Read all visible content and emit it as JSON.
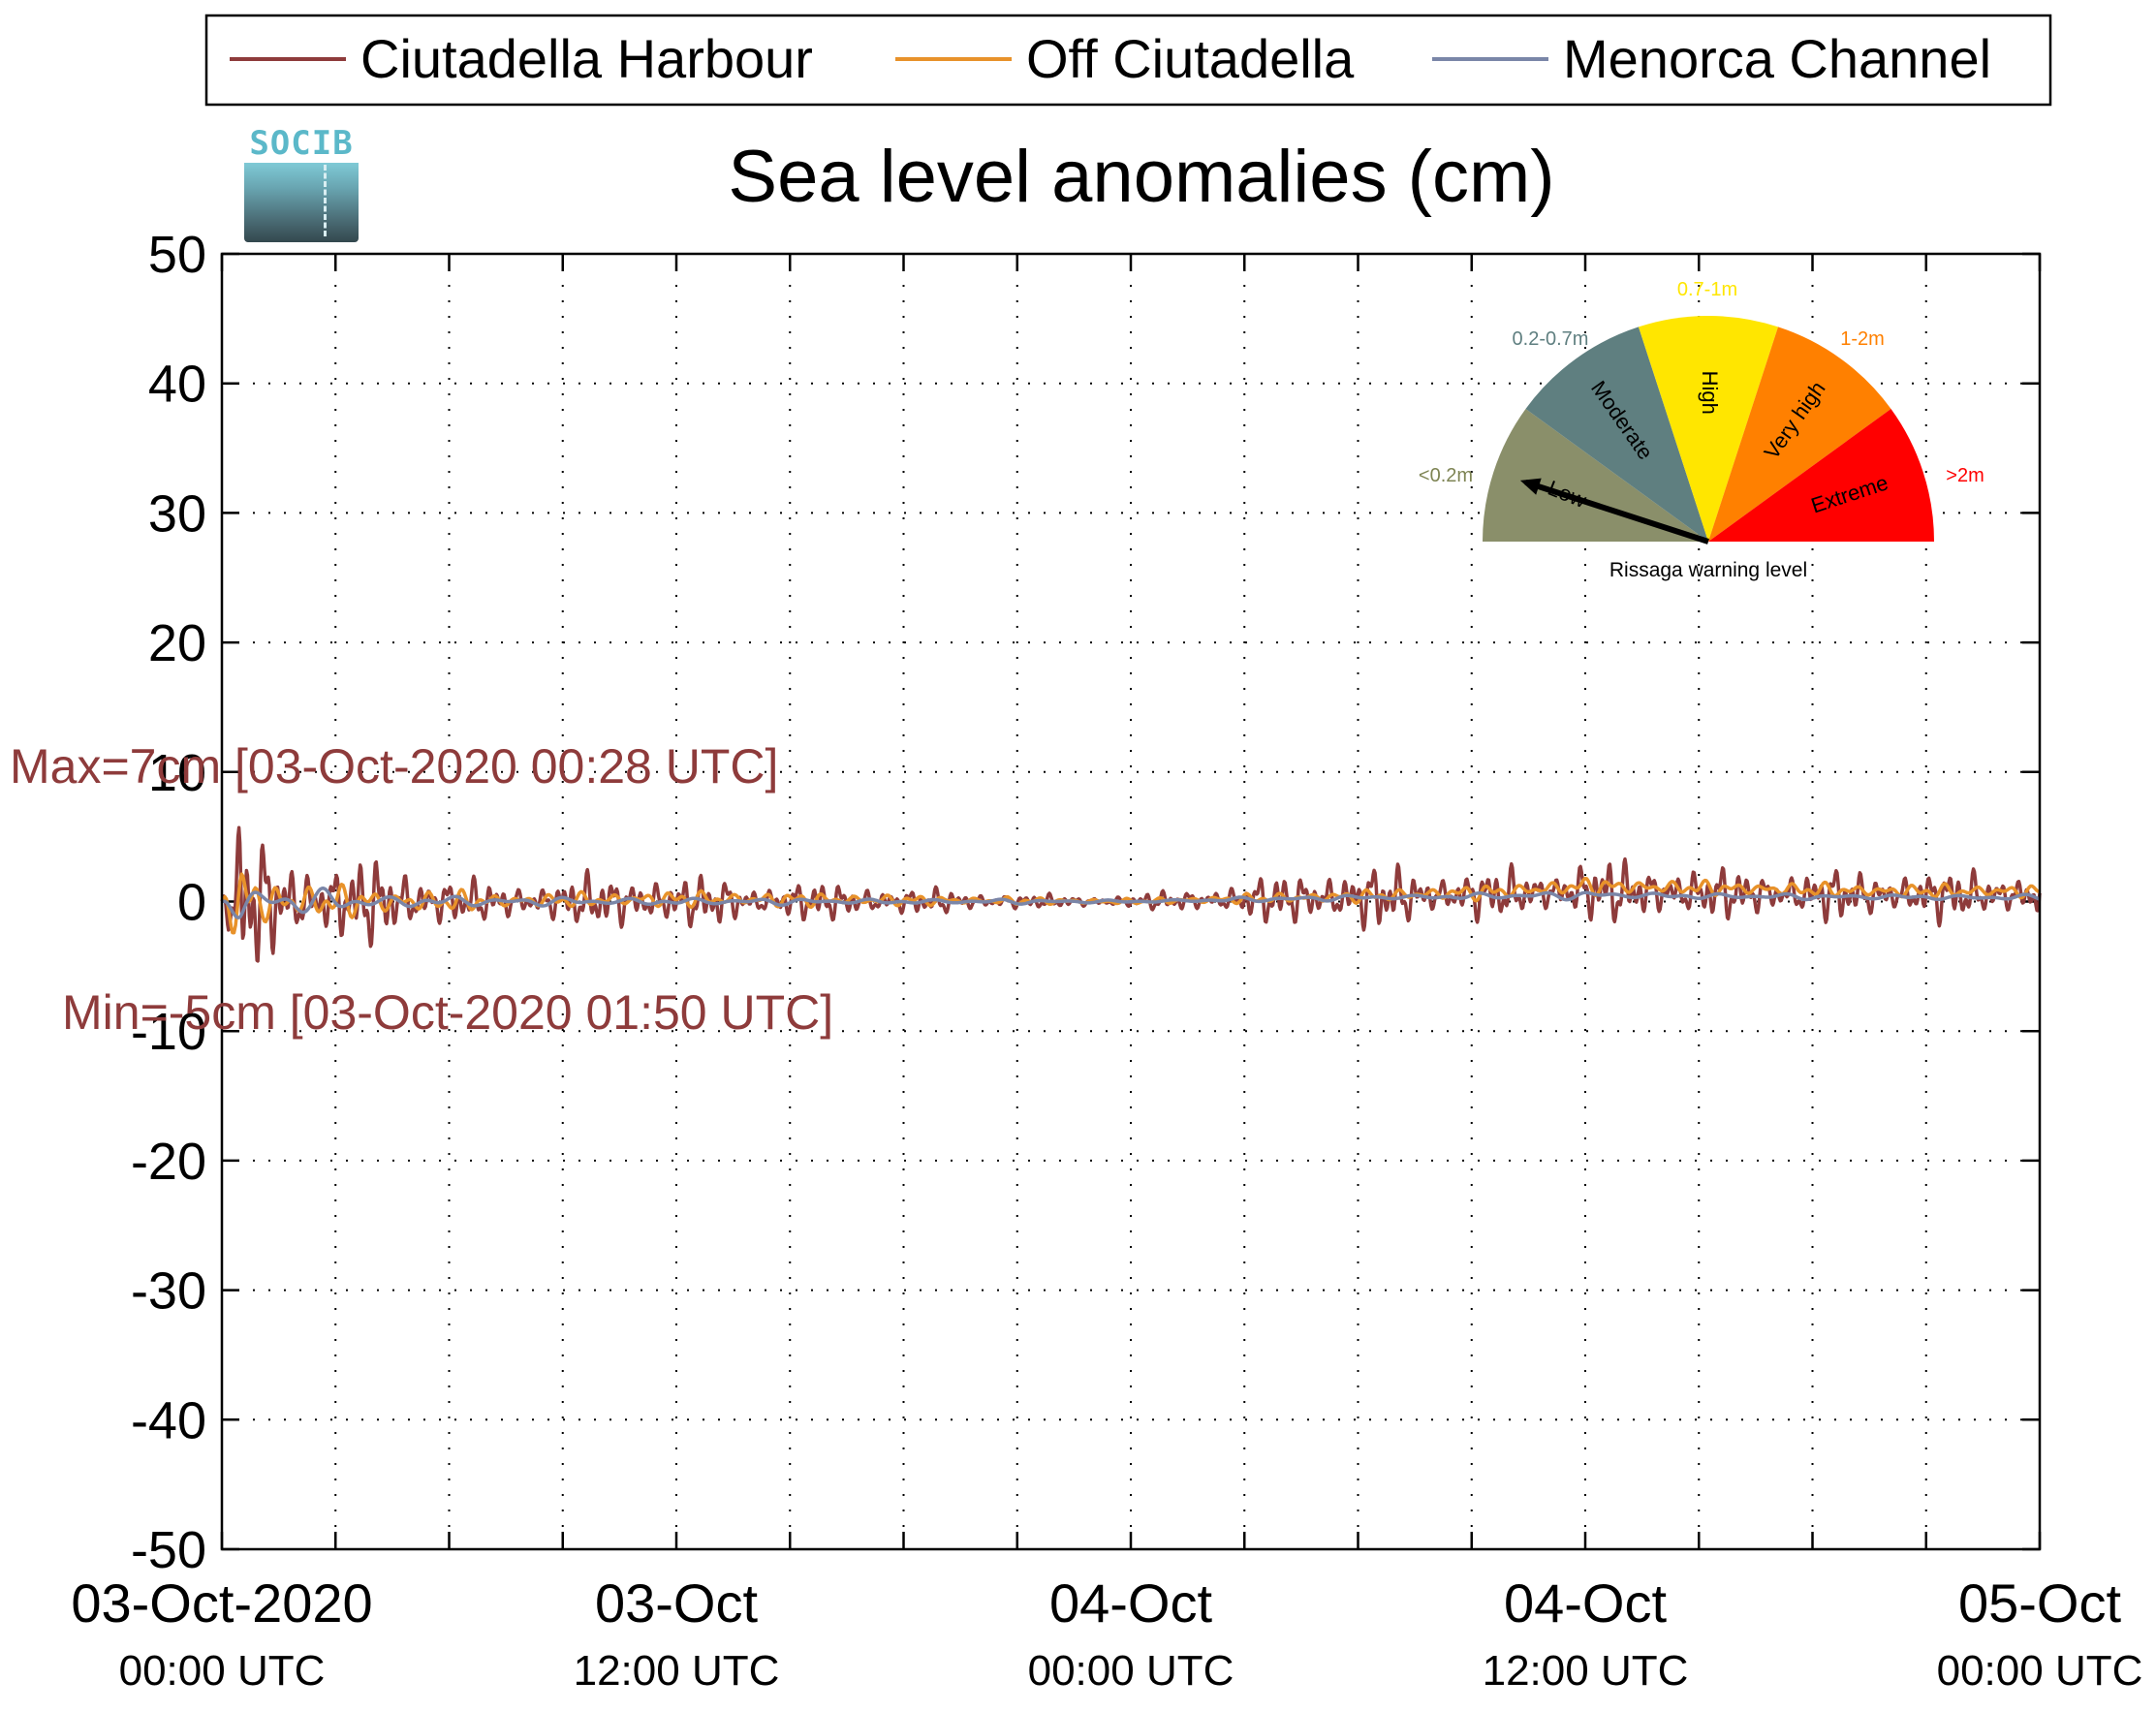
{
  "chart_data": {
    "type": "line",
    "title": "Sea level anomalies (cm)",
    "xlabel": "",
    "ylabel": "",
    "ylim": [
      -50,
      50
    ],
    "yticks": [
      50,
      40,
      30,
      20,
      10,
      0,
      -10,
      -20,
      -30,
      -40,
      -50
    ],
    "y_tick_labels": [
      "50",
      "40",
      "30",
      "20",
      "10",
      "0",
      "-10",
      "-20",
      "-30",
      "-40",
      "-50"
    ],
    "xlim_hours": [
      0,
      48
    ],
    "x_axis_start": "03-Oct-2020 00:00 UTC",
    "x_ticks": [
      {
        "hour": 0,
        "line1": "03-Oct-2020",
        "line2": "00:00 UTC"
      },
      {
        "hour": 12,
        "line1": "03-Oct",
        "line2": "12:00 UTC"
      },
      {
        "hour": 24,
        "line1": "04-Oct",
        "line2": "00:00 UTC"
      },
      {
        "hour": 36,
        "line1": "04-Oct",
        "line2": "12:00 UTC"
      },
      {
        "hour": 48,
        "line1": "05-Oct",
        "line2": "00:00 UTC"
      }
    ],
    "grid": true,
    "legend_position": "top",
    "series": [
      {
        "name": "Ciutadella Harbour",
        "color": "#8e3b3b",
        "envelope": [
          [
            0,
            0
          ],
          [
            0.5,
            7
          ],
          [
            1,
            5
          ],
          [
            2,
            4
          ],
          [
            3,
            3
          ],
          [
            4,
            3.5
          ],
          [
            5,
            3
          ],
          [
            6,
            2
          ],
          [
            7,
            1.5
          ],
          [
            8,
            1.5
          ],
          [
            9,
            2
          ],
          [
            10,
            2
          ],
          [
            11,
            2.5
          ],
          [
            12,
            2
          ],
          [
            13,
            2
          ],
          [
            14,
            1.5
          ],
          [
            15,
            1.5
          ],
          [
            16,
            1.5
          ],
          [
            17,
            1.5
          ],
          [
            18,
            1
          ],
          [
            19,
            1
          ],
          [
            20,
            0.8
          ],
          [
            21,
            0.6
          ],
          [
            22,
            0.5
          ],
          [
            23,
            0.5
          ],
          [
            24,
            0.5
          ],
          [
            25,
            0.8
          ],
          [
            26,
            1
          ],
          [
            27,
            1.5
          ],
          [
            28,
            2
          ],
          [
            29,
            2.5
          ],
          [
            30,
            2.5
          ],
          [
            31,
            2.5
          ],
          [
            32,
            2
          ],
          [
            33,
            2
          ],
          [
            34,
            2
          ],
          [
            35,
            2
          ],
          [
            36,
            2.5
          ],
          [
            37,
            2.5
          ],
          [
            38,
            2.5
          ],
          [
            39,
            2
          ],
          [
            40,
            2
          ],
          [
            41,
            2
          ],
          [
            42,
            2
          ],
          [
            43,
            2
          ],
          [
            44,
            2
          ],
          [
            45,
            2
          ],
          [
            46,
            2
          ],
          [
            47,
            2
          ],
          [
            48,
            2
          ]
        ],
        "baseline": [
          [
            0,
            0
          ],
          [
            6,
            0
          ],
          [
            12,
            0
          ],
          [
            18,
            0
          ],
          [
            24,
            0
          ],
          [
            30,
            0.3
          ],
          [
            34,
            0.6
          ],
          [
            36,
            0.8
          ],
          [
            40,
            0.6
          ],
          [
            44,
            0.5
          ],
          [
            48,
            0.5
          ]
        ]
      },
      {
        "name": "Off Ciutadella",
        "color": "#e8922a",
        "envelope": [
          [
            0,
            0
          ],
          [
            0.5,
            3.5
          ],
          [
            1,
            2
          ],
          [
            2,
            1.5
          ],
          [
            3,
            1.2
          ],
          [
            4,
            1
          ],
          [
            6,
            0.8
          ],
          [
            8,
            0.5
          ],
          [
            12,
            0.6
          ],
          [
            16,
            0.5
          ],
          [
            20,
            0.3
          ],
          [
            24,
            0.2
          ],
          [
            28,
            0.4
          ],
          [
            32,
            0.5
          ],
          [
            36,
            0.6
          ],
          [
            40,
            0.5
          ],
          [
            44,
            0.5
          ],
          [
            48,
            0.5
          ]
        ],
        "baseline": [
          [
            0,
            0
          ],
          [
            6,
            0
          ],
          [
            12,
            0.2
          ],
          [
            18,
            0.1
          ],
          [
            24,
            0
          ],
          [
            30,
            0.4
          ],
          [
            34,
            0.8
          ],
          [
            36,
            1.2
          ],
          [
            40,
            1
          ],
          [
            44,
            0.8
          ],
          [
            48,
            0.8
          ]
        ]
      },
      {
        "name": "Menorca Channel",
        "color": "#7a86a8",
        "envelope": [
          [
            0,
            0
          ],
          [
            0.5,
            1.5
          ],
          [
            2,
            1
          ],
          [
            4,
            0.6
          ],
          [
            8,
            0.3
          ],
          [
            12,
            0.3
          ],
          [
            16,
            0.2
          ],
          [
            20,
            0.2
          ],
          [
            24,
            0.1
          ],
          [
            28,
            0.2
          ],
          [
            32,
            0.2
          ],
          [
            36,
            0.3
          ],
          [
            40,
            0.2
          ],
          [
            44,
            0.2
          ],
          [
            48,
            0.2
          ]
        ],
        "baseline": [
          [
            0,
            0
          ],
          [
            12,
            0
          ],
          [
            24,
            0
          ],
          [
            30,
            0.3
          ],
          [
            36,
            0.5
          ],
          [
            40,
            0.4
          ],
          [
            48,
            0.3
          ]
        ]
      }
    ],
    "annotations": {
      "max_text": "Max=7cm [03-Oct-2020 00:28 UTC]",
      "min_text": "Min=-5cm [03-Oct-2020 01:50 UTC]",
      "color": "#8e3b3b"
    }
  },
  "logo": {
    "text": "SOCIB"
  },
  "gauge": {
    "caption": "Rissaga warning level",
    "needle_level": "Low",
    "segments": [
      {
        "name": "Low",
        "range": "<0.2m",
        "color": "#8a8f6a",
        "text_color": "#000000"
      },
      {
        "name": "Moderate",
        "range": "0.2-0.7m",
        "color": "#5f7f80",
        "text_color": "#000000"
      },
      {
        "name": "High",
        "range": "0.7-1m",
        "color": "#ffe600",
        "text_color": "#000000"
      },
      {
        "name": "Very high",
        "range": "1-2m",
        "color": "#ff8000",
        "text_color": "#000000"
      },
      {
        "name": "Extreme",
        "range": ">2m",
        "color": "#ff0000",
        "text_color": "#000000"
      }
    ],
    "range_label_colors": [
      "#7e8454",
      "#5f7f80",
      "#ffe600",
      "#ff8000",
      "#ff0000"
    ]
  }
}
